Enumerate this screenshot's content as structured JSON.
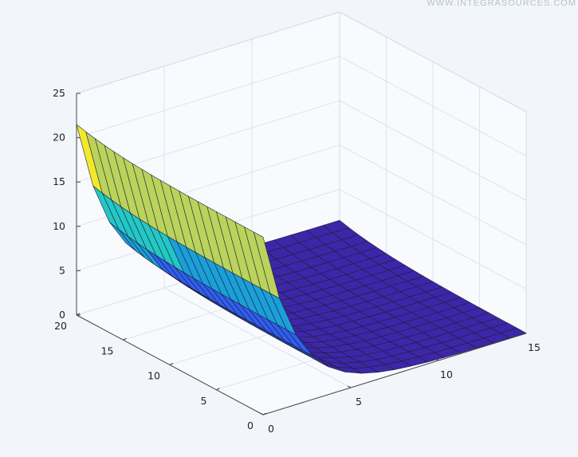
{
  "watermark": "WWW.INTEGRASOURCES.COM",
  "chart_data": {
    "type": "surface",
    "view": "3d",
    "grid": true,
    "colormap": [
      "#3d26a8",
      "#2f5ef0",
      "#1a9fd8",
      "#23c7c4",
      "#b9d35b",
      "#f2e92a"
    ],
    "x_ticks": [
      0,
      5,
      10,
      15
    ],
    "y_ticks": [
      0,
      5,
      10,
      15,
      20
    ],
    "z_ticks": [
      0,
      5,
      10,
      15,
      20,
      25
    ],
    "xlim": [
      0,
      15
    ],
    "ylim": [
      0,
      20
    ],
    "zlim": [
      0,
      25
    ],
    "z_function": "z = 20*exp(-0.5*x) + 1.5*exp(-0.2*(20-y))",
    "grid_resolution": {
      "nx": 16,
      "ny": 20
    }
  }
}
